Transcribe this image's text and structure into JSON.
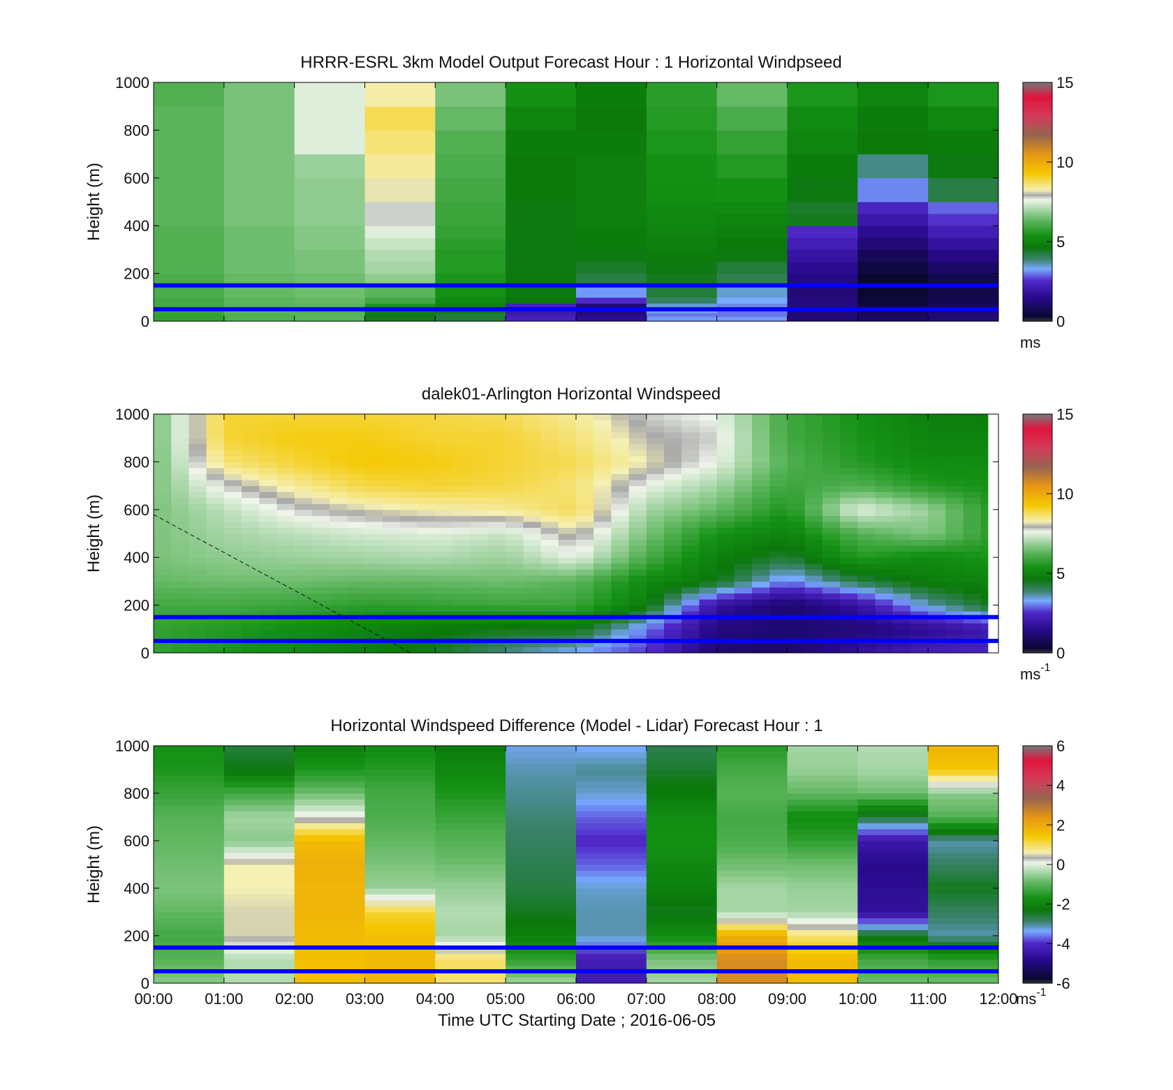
{
  "figure": {
    "xlabel": "Time UTC  Starting Date ; 2016-06-05",
    "x_ticks": [
      "00:00",
      "01:00",
      "02:00",
      "03:00",
      "04:00",
      "05:00",
      "06:00",
      "07:00",
      "08:00",
      "09:00",
      "10:00",
      "11:00",
      "12:00"
    ],
    "overlay_line_color": "#0000ff",
    "overlay_line_heights_m": [
      150,
      50
    ]
  },
  "chart_data": [
    {
      "type": "heatmap",
      "title": "HRRR-ESRL 3km Model Output   Forecast Hour : 1 Horizontal Windpseed",
      "ylabel": "Height (m)",
      "y_ticks": [
        "0",
        "200",
        "400",
        "600",
        "800",
        "1000"
      ],
      "ylim": [
        0,
        1000
      ],
      "xlim_hours": [
        0,
        12
      ],
      "colorbar": {
        "min": 0,
        "max": 15,
        "ticks": [
          "0",
          "5",
          "10",
          "15"
        ],
        "unit": "ms",
        "unit_sup": ""
      },
      "time_bins_hours": [
        0,
        1,
        2,
        3,
        4,
        5,
        6,
        7,
        8,
        9,
        10,
        11,
        12
      ],
      "height_levels_m": [
        0,
        20,
        35,
        50,
        75,
        100,
        150,
        200,
        250,
        300,
        350,
        400,
        450,
        500,
        600,
        700,
        800,
        900,
        1000
      ],
      "values_ms": [
        [
          5.8,
          6.2,
          6.3,
          4.5,
          4.3,
          2.3,
          1.6,
          3.2,
          3.2,
          1.2,
          1.0,
          1.2
        ],
        [
          5.8,
          6.2,
          6.3,
          4.5,
          4.3,
          2.1,
          1.4,
          3.0,
          3.0,
          1.2,
          0.9,
          1.2
        ],
        [
          5.9,
          6.3,
          6.2,
          5.0,
          4.6,
          2.0,
          1.2,
          3.4,
          3.0,
          1.3,
          0.7,
          1.0
        ],
        [
          6.0,
          6.3,
          6.3,
          5.5,
          5.0,
          2.3,
          1.3,
          3.5,
          3.1,
          1.4,
          0.5,
          0.8
        ],
        [
          6.0,
          6.3,
          6.4,
          6.0,
          5.2,
          4.7,
          2.5,
          4.0,
          3.3,
          1.3,
          0.4,
          0.7
        ],
        [
          6.1,
          6.4,
          6.5,
          6.3,
          5.4,
          4.6,
          3.2,
          4.3,
          3.5,
          1.2,
          0.3,
          0.6
        ],
        [
          6.1,
          6.4,
          6.5,
          6.8,
          5.5,
          4.6,
          4.2,
          4.5,
          4.1,
          1.4,
          0.3,
          0.7
        ],
        [
          6.2,
          6.5,
          6.6,
          7.0,
          5.6,
          4.6,
          4.4,
          4.6,
          4.3,
          1.6,
          0.5,
          1.0
        ],
        [
          6.2,
          6.5,
          6.6,
          7.1,
          5.6,
          4.6,
          4.6,
          4.8,
          4.6,
          1.9,
          0.8,
          1.4
        ],
        [
          6.2,
          6.5,
          6.7,
          7.3,
          5.7,
          4.6,
          4.8,
          4.9,
          4.7,
          2.2,
          1.2,
          1.8
        ],
        [
          6.2,
          6.5,
          6.7,
          7.5,
          5.8,
          4.6,
          4.8,
          5.0,
          4.9,
          2.5,
          1.6,
          2.2
        ],
        [
          6.3,
          6.6,
          6.8,
          7.8,
          5.9,
          4.6,
          4.9,
          5.1,
          5.0,
          4.5,
          2.0,
          2.6
        ],
        [
          6.3,
          6.6,
          6.8,
          7.8,
          5.9,
          4.6,
          4.9,
          5.2,
          5.2,
          4.4,
          2.4,
          2.9
        ],
        [
          6.3,
          6.6,
          6.8,
          8.2,
          6.0,
          4.7,
          4.9,
          5.3,
          5.4,
          4.6,
          3.1,
          4.2
        ],
        [
          6.3,
          6.6,
          6.9,
          8.4,
          6.1,
          4.7,
          4.9,
          5.4,
          5.6,
          4.8,
          3.8,
          4.6
        ],
        [
          6.3,
          6.6,
          7.5,
          8.6,
          6.2,
          4.8,
          4.8,
          5.5,
          5.8,
          5.0,
          4.7,
          4.8
        ],
        [
          6.3,
          6.6,
          7.5,
          8.8,
          6.4,
          5.0,
          4.7,
          5.6,
          6.1,
          5.2,
          4.8,
          5.1
        ],
        [
          6.2,
          6.6,
          7.5,
          8.3,
          6.6,
          5.4,
          4.8,
          5.7,
          6.4,
          5.5,
          5.0,
          5.5
        ],
        [
          6.2,
          6.6,
          6.9,
          7.5,
          6.8,
          5.8,
          5.0,
          5.8,
          6.6,
          5.7,
          5.2,
          6.0
        ]
      ]
    },
    {
      "type": "heatmap",
      "title": "dalek01-Arlington  Horizontal Windspeed",
      "ylabel": "Height (m)",
      "y_ticks": [
        "0",
        "200",
        "400",
        "600",
        "800",
        "1000"
      ],
      "ylim": [
        0,
        1000
      ],
      "xlim_hours": [
        0,
        12
      ],
      "colorbar": {
        "min": 0,
        "max": 15,
        "ticks": [
          "0",
          "5",
          "10",
          "15"
        ],
        "unit": "ms",
        "unit_sup": "-1"
      },
      "time_hours": [
        0,
        1,
        2,
        3,
        4,
        5,
        6,
        7,
        8,
        9,
        10,
        11,
        12
      ],
      "height_m": [
        0,
        100,
        200,
        300,
        400,
        500,
        600,
        700,
        800,
        900,
        1000
      ],
      "values_ms": [
        [
          5.8,
          5.5,
          5.2,
          4.9,
          4.5,
          3.8,
          3.2,
          2.6,
          1.1,
          1.0,
          1.8,
          2.3,
          2.4
        ],
        [
          5.8,
          5.6,
          5.3,
          5.0,
          4.7,
          4.5,
          4.6,
          3.0,
          1.3,
          1.1,
          1.2,
          1.6,
          2.1
        ],
        [
          6.0,
          6.0,
          5.9,
          5.7,
          5.8,
          5.9,
          5.9,
          4.8,
          1.8,
          1.0,
          1.8,
          3.6,
          4.6
        ],
        [
          6.4,
          6.5,
          6.5,
          6.4,
          6.4,
          6.5,
          6.3,
          5.2,
          4.6,
          3.0,
          4.2,
          4.8,
          5.0
        ],
        [
          6.6,
          6.8,
          6.9,
          7.0,
          7.1,
          6.9,
          7.6,
          6.1,
          4.9,
          4.3,
          5.6,
          5.2,
          5.5
        ],
        [
          6.6,
          7.0,
          7.2,
          7.4,
          7.5,
          7.3,
          8.1,
          6.6,
          5.4,
          5.0,
          6.2,
          6.7,
          5.6
        ],
        [
          6.6,
          7.2,
          7.8,
          8.1,
          8.3,
          8.4,
          8.8,
          7.0,
          6.4,
          5.5,
          7.6,
          6.9,
          5.5
        ],
        [
          6.6,
          7.8,
          8.4,
          8.9,
          9.0,
          8.9,
          8.6,
          7.6,
          7.0,
          5.9,
          6.2,
          5.6,
          5.4
        ],
        [
          6.5,
          8.6,
          9.0,
          9.3,
          9.2,
          9.0,
          8.8,
          8.2,
          7.6,
          6.2,
          5.6,
          5.2,
          5.2
        ],
        [
          6.5,
          9.0,
          9.2,
          9.2,
          9.0,
          9.0,
          8.6,
          8.0,
          7.8,
          6.0,
          5.5,
          5.0,
          5.0
        ],
        [
          6.5,
          9.0,
          9.0,
          9.0,
          8.9,
          8.8,
          8.4,
          7.8,
          7.6,
          6.0,
          5.4,
          4.9,
          4.8
        ]
      ]
    },
    {
      "type": "heatmap",
      "title": "Horizontal Windspeed Difference (Model - Lidar) Forecast Hour : 1",
      "ylabel": "Height (m)",
      "y_ticks": [
        "0",
        "200",
        "400",
        "600",
        "800",
        "1000"
      ],
      "ylim": [
        0,
        1000
      ],
      "xlim_hours": [
        0,
        12
      ],
      "colorbar": {
        "min": -6,
        "max": 6,
        "ticks": [
          "-6",
          "-4",
          "-2",
          "0",
          "2",
          "4",
          "6"
        ],
        "unit": "ms",
        "unit_sup": "-1"
      },
      "time_bins_hours": [
        0,
        1,
        2,
        3,
        4,
        5,
        6,
        7,
        8,
        9,
        10,
        11,
        12
      ],
      "height_m": [
        0,
        100,
        200,
        300,
        400,
        500,
        600,
        700,
        800,
        900,
        1000
      ],
      "values_ms": [
        [
          -0.6,
          -0.3,
          1.6,
          1.8,
          0.9,
          -0.4,
          -4.3,
          -0.4,
          2.6,
          1.6,
          -0.8,
          -0.8
        ],
        [
          -1.0,
          -0.3,
          1.6,
          1.7,
          1.0,
          -1.4,
          -4.3,
          -0.7,
          2.6,
          1.7,
          -1.2,
          -1.4
        ],
        [
          -1.2,
          0.5,
          1.7,
          1.6,
          -0.4,
          -2.1,
          -3.1,
          -1.8,
          1.9,
          0.9,
          -2.4,
          -3.1
        ],
        [
          -0.9,
          0.5,
          1.8,
          1.2,
          -0.3,
          -2.4,
          -3.1,
          -2.4,
          -0.4,
          -0.4,
          -4.6,
          -2.8
        ],
        [
          -0.7,
          0.6,
          1.8,
          -0.5,
          -0.5,
          -2.6,
          -3.2,
          -2.1,
          -0.4,
          -0.5,
          -4.7,
          -2.4
        ],
        [
          -0.8,
          0.6,
          1.9,
          -0.7,
          -0.8,
          -2.7,
          -3.7,
          -1.9,
          -0.8,
          -0.8,
          -4.8,
          -2.8
        ],
        [
          -0.9,
          -0.6,
          1.7,
          -0.9,
          -1.0,
          -2.8,
          -4.0,
          -1.7,
          -1.1,
          -1.4,
          -4.4,
          -3.1
        ],
        [
          -1.0,
          -0.4,
          0.2,
          -1.1,
          -1.3,
          -2.9,
          -3.7,
          -1.8,
          -1.2,
          -1.8,
          -2.6,
          -1.0
        ],
        [
          -1.3,
          -1.2,
          -0.8,
          -1.2,
          -1.6,
          -3.0,
          -3.2,
          -2.2,
          -1.0,
          -0.9,
          -0.8,
          -0.6
        ],
        [
          -1.6,
          -2.3,
          -1.6,
          -1.5,
          -1.9,
          -3.1,
          -3.0,
          -2.5,
          -1.2,
          -0.5,
          -0.4,
          1.5
        ],
        [
          -1.7,
          -2.6,
          -2.1,
          -1.8,
          -2.2,
          -3.3,
          -3.4,
          -2.7,
          -1.5,
          -0.4,
          -0.3,
          1.8
        ]
      ]
    }
  ]
}
